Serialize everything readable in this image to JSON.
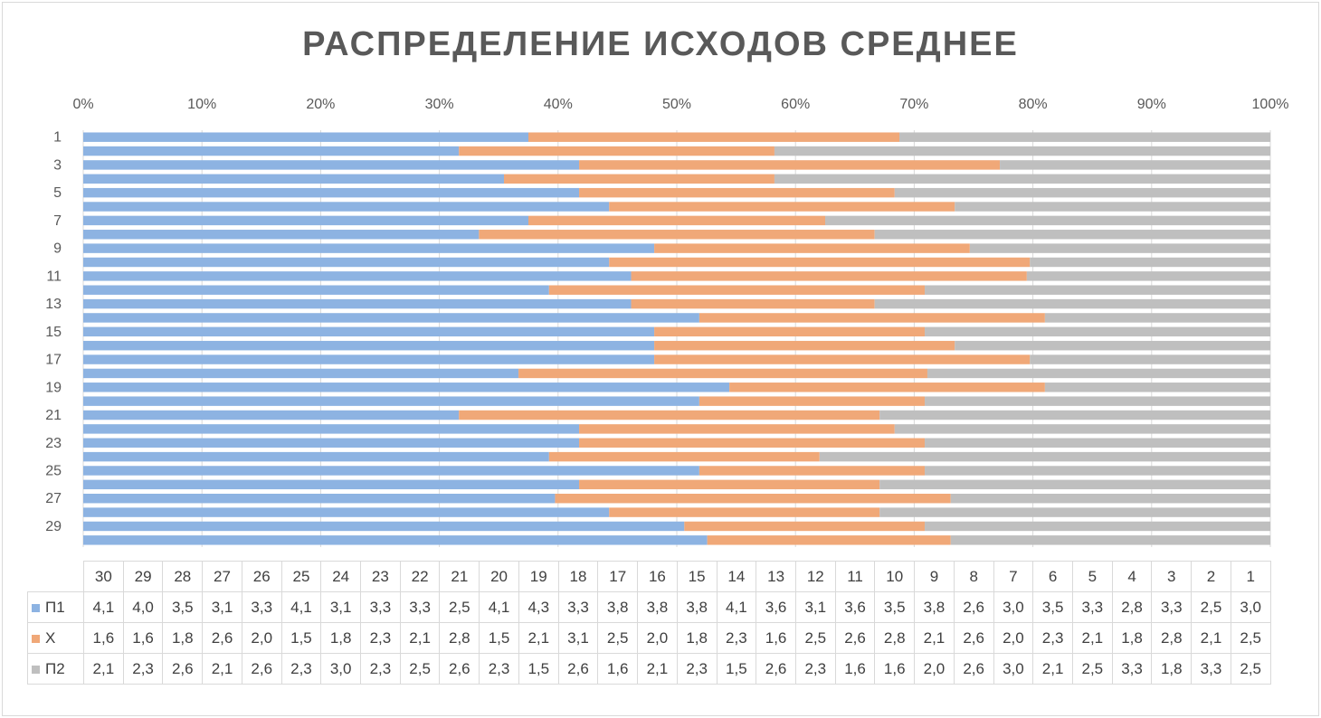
{
  "chart_data": {
    "type": "stacked-bar-100",
    "title": "РАСПРЕДЕЛЕНИЕ ИСХОДОВ СРЕДНЕЕ",
    "orientation": "horizontal",
    "x_axis_position": "top",
    "x_ticks": [
      "0%",
      "10%",
      "20%",
      "30%",
      "40%",
      "50%",
      "60%",
      "70%",
      "80%",
      "90%",
      "100%"
    ],
    "categories": [
      "1",
      "2",
      "3",
      "4",
      "5",
      "6",
      "7",
      "8",
      "9",
      "10",
      "11",
      "12",
      "13",
      "14",
      "15",
      "16",
      "17",
      "18",
      "19",
      "20",
      "21",
      "22",
      "23",
      "24",
      "25",
      "26",
      "27",
      "28",
      "29",
      "30"
    ],
    "category_labels_shown": [
      "1",
      "3",
      "5",
      "7",
      "9",
      "11",
      "13",
      "15",
      "17",
      "19",
      "21",
      "23",
      "25",
      "27",
      "29"
    ],
    "table_columns": [
      "30",
      "29",
      "28",
      "27",
      "26",
      "25",
      "24",
      "23",
      "22",
      "21",
      "20",
      "19",
      "18",
      "17",
      "16",
      "15",
      "14",
      "13",
      "12",
      "11",
      "10",
      "9",
      "8",
      "7",
      "6",
      "5",
      "4",
      "3",
      "2",
      "1"
    ],
    "series": [
      {
        "name": "П1",
        "color": "#8db3e2",
        "values": [
          "3,0",
          "2,5",
          "3,3",
          "2,8",
          "3,3",
          "3,5",
          "3,0",
          "2,6",
          "3,8",
          "3,5",
          "3,6",
          "3,1",
          "3,6",
          "4,1",
          "3,8",
          "3,8",
          "3,8",
          "3,3",
          "4,3",
          "4,1",
          "2,5",
          "3,3",
          "3,3",
          "3,1",
          "4,1",
          "3,3",
          "3,1",
          "3,5",
          "4,0",
          "4,1"
        ]
      },
      {
        "name": "Х",
        "color": "#f0a878",
        "values": [
          "2,5",
          "2,1",
          "2,8",
          "1,8",
          "2,1",
          "2,3",
          "2,0",
          "2,6",
          "2,1",
          "2,8",
          "2,6",
          "2,5",
          "1,6",
          "2,3",
          "1,8",
          "2,0",
          "2,5",
          "3,1",
          "2,1",
          "1,5",
          "2,8",
          "2,1",
          "2,3",
          "1,8",
          "1,5",
          "2,0",
          "2,6",
          "1,8",
          "1,6",
          "1,6"
        ]
      },
      {
        "name": "П2",
        "color": "#bfbfbf",
        "values": [
          "2,5",
          "3,3",
          "1,8",
          "3,3",
          "2,5",
          "2,1",
          "3,0",
          "2,6",
          "2,0",
          "1,6",
          "1,6",
          "2,3",
          "2,6",
          "1,5",
          "2,3",
          "2,1",
          "1,6",
          "2,6",
          "1,5",
          "2,3",
          "2,6",
          "2,5",
          "2,3",
          "3,0",
          "2,3",
          "2,6",
          "2,1",
          "2,6",
          "2,3",
          "2,1"
        ]
      }
    ],
    "grid": true,
    "legend_placement": "data-table"
  }
}
